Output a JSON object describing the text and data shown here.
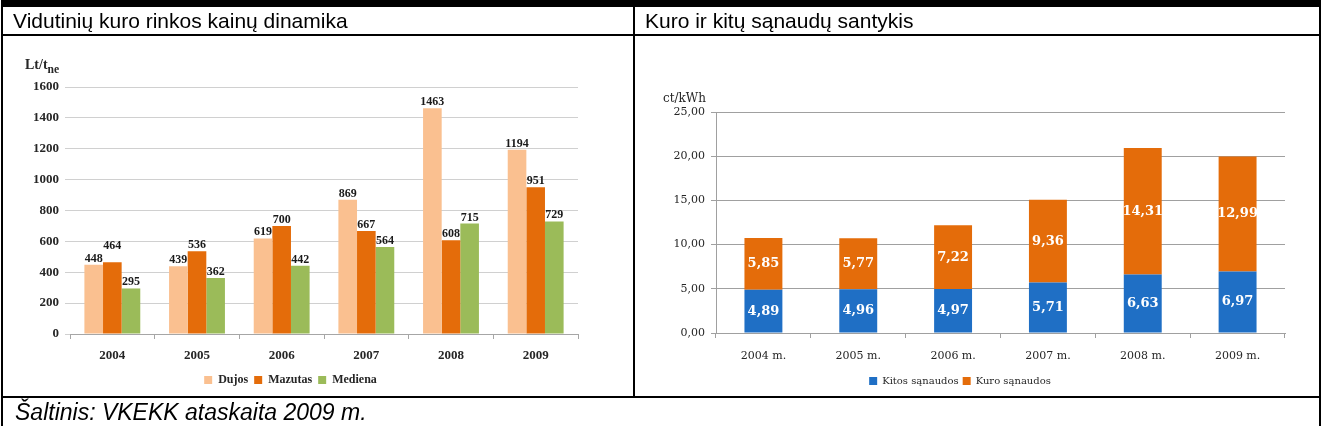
{
  "chart_data": [
    {
      "type": "bar",
      "title": "Vidutinių kuro rinkos kainų dinamika",
      "ylabel": "Lt/t$_{ne}$",
      "categories": [
        "2004",
        "2005",
        "2006",
        "2007",
        "2008",
        "2009"
      ],
      "series": [
        {
          "name": "Dujos",
          "color": "#fac090",
          "values": [
            448,
            439,
            619,
            869,
            1463,
            1194
          ]
        },
        {
          "name": "Mazutas",
          "color": "#e46c0a",
          "values": [
            464,
            536,
            700,
            667,
            608,
            951
          ]
        },
        {
          "name": "Mediena",
          "color": "#9bbb59",
          "values": [
            295,
            362,
            442,
            564,
            715,
            729
          ]
        }
      ],
      "ylim": [
        0,
        1600
      ],
      "yticks": [
        0,
        200,
        400,
        600,
        800,
        1000,
        1200,
        1400,
        1600
      ],
      "grid": "y",
      "legend": "bottom",
      "data_labels": true,
      "annotations": [
        "Šaltinis: VKEKK ataskaita 2009 m."
      ]
    },
    {
      "type": "bar",
      "title": "Kuro ir kitų sąnaudų santykis",
      "ylabel": "ct/kWh",
      "categories": [
        "2004 m.",
        "2005 m.",
        "2006 m.",
        "2007 m.",
        "2008 m.",
        "2009 m."
      ],
      "stacked": true,
      "series": [
        {
          "name": "Kitos sąnaudos",
          "color": "#1f6fc5",
          "values": [
            4.89,
            4.96,
            4.97,
            5.71,
            6.63,
            6.97
          ],
          "value_labels": [
            "4,89",
            "4,96",
            "4,97",
            "5,71",
            "6,63",
            "6,97"
          ]
        },
        {
          "name": "Kuro sąnaudos",
          "color": "#e46c0a",
          "values": [
            5.85,
            5.77,
            7.22,
            9.36,
            14.31,
            12.99
          ],
          "value_labels": [
            "5,85",
            "5,77",
            "7,22",
            "9,36",
            "14,31",
            "12,99"
          ]
        }
      ],
      "ylim": [
        0,
        25
      ],
      "yticks": [
        {
          "value": 0,
          "label": "0,00"
        },
        {
          "value": 5,
          "label": "5,00"
        },
        {
          "value": 10,
          "label": "10,00"
        },
        {
          "value": 15,
          "label": "15,00"
        },
        {
          "value": 20,
          "label": "20,00"
        },
        {
          "value": 25,
          "label": "25,00"
        }
      ],
      "grid": "y",
      "legend": "bottom"
    }
  ]
}
